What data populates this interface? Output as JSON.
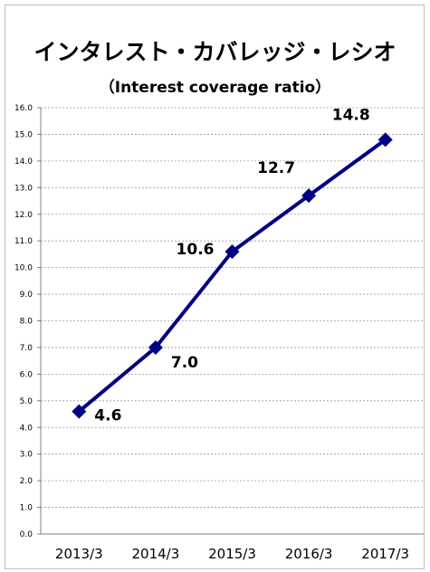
{
  "chart_data": {
    "type": "line",
    "title": "インタレスト・カバレッジ・レシオ",
    "subtitle": "（Interest coverage ratio）",
    "categories": [
      "2013/3",
      "2014/3",
      "2015/3",
      "2016/3",
      "2017/3"
    ],
    "series": [
      {
        "values": [
          4.6,
          7.0,
          10.6,
          12.7,
          14.8
        ],
        "color": "#000080",
        "marker": "diamond"
      }
    ],
    "data_labels": [
      "4.6",
      "7.0",
      "10.6",
      "12.7",
      "14.8"
    ],
    "ylim": [
      0,
      16
    ],
    "yticks": [
      "0.0",
      "1.0",
      "2.0",
      "3.0",
      "4.0",
      "5.0",
      "6.0",
      "7.0",
      "8.0",
      "9.0",
      "10.0",
      "11.0",
      "12.0",
      "13.0",
      "14.0",
      "15.0",
      "16.0"
    ],
    "xlabel": "",
    "ylabel": "",
    "grid": "horizontal-dashed",
    "legend": "none"
  }
}
